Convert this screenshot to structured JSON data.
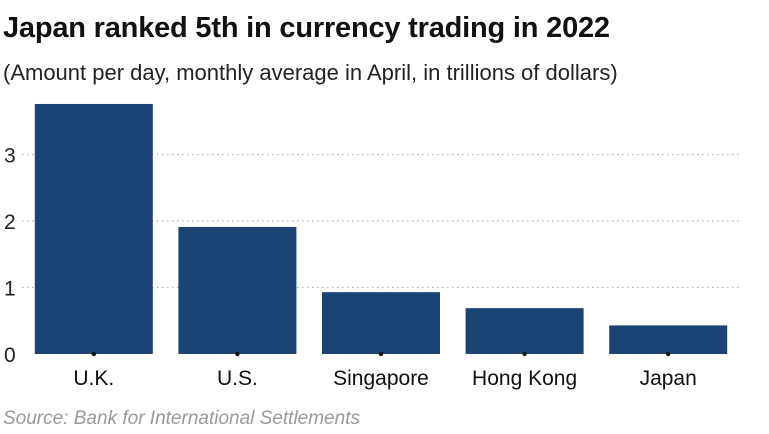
{
  "chart_data": {
    "type": "bar",
    "title": "Japan ranked 5th in currency trading in 2022",
    "subtitle": "(Amount per day, monthly average in April, in trillions of dollars)",
    "categories": [
      "U.K.",
      "U.S.",
      "Singapore",
      "Hong Kong",
      "Japan"
    ],
    "values": [
      3.76,
      1.91,
      0.93,
      0.69,
      0.43
    ],
    "yticks": [
      0,
      1,
      2,
      3
    ],
    "ylim": [
      0,
      3.8
    ],
    "grid": true,
    "bar_color": "#1a4474",
    "source": "Source: Bank for International Settlements"
  }
}
